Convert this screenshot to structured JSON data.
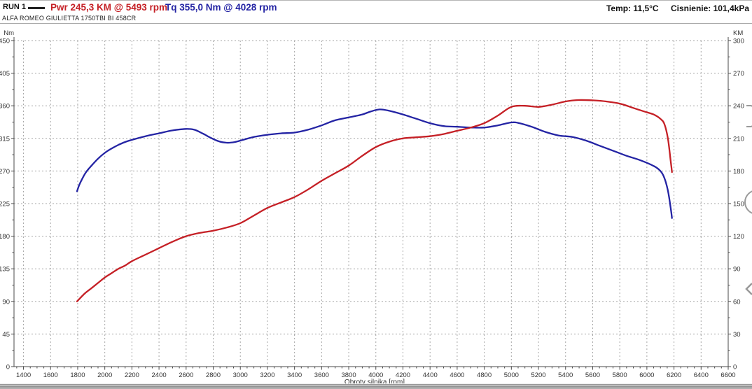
{
  "header": {
    "run_label": "RUN 1",
    "legend_power": "Pwr  245,3 KM @ 5493 rpm",
    "legend_torque": "Tq 355,0 Nm @ 4028 rpm",
    "temp_label": "Temp: 11,5°C",
    "pressure_label": "Cisnienie: 101,4kPa",
    "vehicle": "ALFA ROMEO GIULIETTA 1750TBI BI 458CR"
  },
  "colors": {
    "power": "#c52026",
    "torque": "#2424a4",
    "grid": "#a6a6a6",
    "axis": "#4a4a4a",
    "tick_text": "#333333",
    "edge_marks": "#9a9a9a"
  },
  "chart_data": {
    "type": "line",
    "title": "",
    "xlabel": "Obroty silnika [rpm]",
    "x_axis": {
      "min": 1330,
      "max": 6600,
      "tick_labels": [
        1400,
        1600,
        1800,
        2000,
        2200,
        2400,
        2600,
        2800,
        3000,
        3200,
        3400,
        3600,
        3800,
        4000,
        4200,
        4400,
        4600,
        4800,
        5000,
        5200,
        5400,
        5600,
        5800,
        6000,
        6200,
        6400,
        6600
      ],
      "major_step": 200,
      "minor_step": 50,
      "grid": "dashed"
    },
    "left_axis": {
      "unit": "Nm",
      "min": 0,
      "max": 450,
      "tick_labels": [
        450,
        405,
        360,
        315,
        270,
        225,
        180,
        135,
        90,
        45,
        0
      ],
      "major_step": 45,
      "minor_step": 22.5,
      "grid": "dashed"
    },
    "right_axis": {
      "unit": "KM",
      "min": 0,
      "max": 300,
      "tick_labels": [
        300,
        270,
        240,
        210,
        180,
        150,
        120,
        90,
        60,
        30,
        0
      ],
      "major_step": 30,
      "minor_step": 15
    },
    "series": [
      {
        "name": "torque",
        "label": "Tq 355,0 Nm @ 4028 rpm",
        "axis": "left",
        "peak": {
          "value": 355.0,
          "unit": "Nm",
          "rpm": 4028
        },
        "points": [
          [
            1795,
            242
          ],
          [
            1810,
            250
          ],
          [
            1830,
            258
          ],
          [
            1860,
            268
          ],
          [
            1900,
            277
          ],
          [
            1950,
            287
          ],
          [
            2000,
            295
          ],
          [
            2050,
            301
          ],
          [
            2100,
            306
          ],
          [
            2150,
            310
          ],
          [
            2200,
            313
          ],
          [
            2300,
            318
          ],
          [
            2400,
            322
          ],
          [
            2500,
            326
          ],
          [
            2600,
            328
          ],
          [
            2660,
            327
          ],
          [
            2720,
            322
          ],
          [
            2780,
            316
          ],
          [
            2840,
            311
          ],
          [
            2900,
            309
          ],
          [
            2960,
            310
          ],
          [
            3020,
            313
          ],
          [
            3100,
            317
          ],
          [
            3200,
            320
          ],
          [
            3300,
            322
          ],
          [
            3400,
            323
          ],
          [
            3500,
            327
          ],
          [
            3600,
            333
          ],
          [
            3700,
            340
          ],
          [
            3800,
            344
          ],
          [
            3900,
            348
          ],
          [
            3960,
            352
          ],
          [
            4028,
            355
          ],
          [
            4100,
            353
          ],
          [
            4200,
            348
          ],
          [
            4300,
            342
          ],
          [
            4400,
            336
          ],
          [
            4500,
            332
          ],
          [
            4600,
            331
          ],
          [
            4700,
            330
          ],
          [
            4800,
            330
          ],
          [
            4900,
            333
          ],
          [
            5000,
            337
          ],
          [
            5060,
            336
          ],
          [
            5150,
            331
          ],
          [
            5250,
            324
          ],
          [
            5350,
            319
          ],
          [
            5450,
            317
          ],
          [
            5550,
            312
          ],
          [
            5650,
            305
          ],
          [
            5750,
            298
          ],
          [
            5850,
            291
          ],
          [
            5950,
            285
          ],
          [
            6050,
            277
          ],
          [
            6100,
            270
          ],
          [
            6130,
            260
          ],
          [
            6155,
            243
          ],
          [
            6175,
            220
          ],
          [
            6185,
            205
          ]
        ]
      },
      {
        "name": "power",
        "label": "Pwr 245,3 KM @ 5493 rpm",
        "axis": "right",
        "peak": {
          "value": 245.3,
          "unit": "KM",
          "rpm": 5493
        },
        "points": [
          [
            1795,
            60
          ],
          [
            1850,
            67
          ],
          [
            1900,
            72
          ],
          [
            1950,
            77
          ],
          [
            2000,
            82
          ],
          [
            2050,
            86
          ],
          [
            2100,
            90
          ],
          [
            2150,
            93
          ],
          [
            2200,
            97
          ],
          [
            2300,
            103
          ],
          [
            2400,
            109
          ],
          [
            2500,
            115
          ],
          [
            2600,
            120
          ],
          [
            2700,
            123
          ],
          [
            2800,
            125
          ],
          [
            2900,
            128
          ],
          [
            3000,
            132
          ],
          [
            3100,
            139
          ],
          [
            3200,
            146
          ],
          [
            3300,
            151
          ],
          [
            3400,
            156
          ],
          [
            3500,
            163
          ],
          [
            3600,
            171
          ],
          [
            3700,
            178
          ],
          [
            3800,
            185
          ],
          [
            3900,
            194
          ],
          [
            4000,
            202
          ],
          [
            4100,
            207
          ],
          [
            4200,
            210
          ],
          [
            4300,
            211
          ],
          [
            4400,
            212
          ],
          [
            4500,
            214
          ],
          [
            4600,
            217
          ],
          [
            4700,
            220
          ],
          [
            4800,
            224
          ],
          [
            4900,
            231
          ],
          [
            5000,
            239
          ],
          [
            5100,
            240
          ],
          [
            5200,
            239
          ],
          [
            5300,
            241
          ],
          [
            5400,
            244
          ],
          [
            5493,
            245.3
          ],
          [
            5600,
            245
          ],
          [
            5700,
            244
          ],
          [
            5800,
            242
          ],
          [
            5900,
            238
          ],
          [
            6000,
            234
          ],
          [
            6050,
            232
          ],
          [
            6100,
            228
          ],
          [
            6130,
            223
          ],
          [
            6155,
            210
          ],
          [
            6175,
            190
          ],
          [
            6185,
            179
          ]
        ]
      }
    ],
    "legend_position": "top-header",
    "edge_marks": [
      {
        "shape": "bracket",
        "y": 150
      },
      {
        "shape": "circle",
        "y": 288
      },
      {
        "shape": "chevron",
        "y": 412
      }
    ]
  }
}
